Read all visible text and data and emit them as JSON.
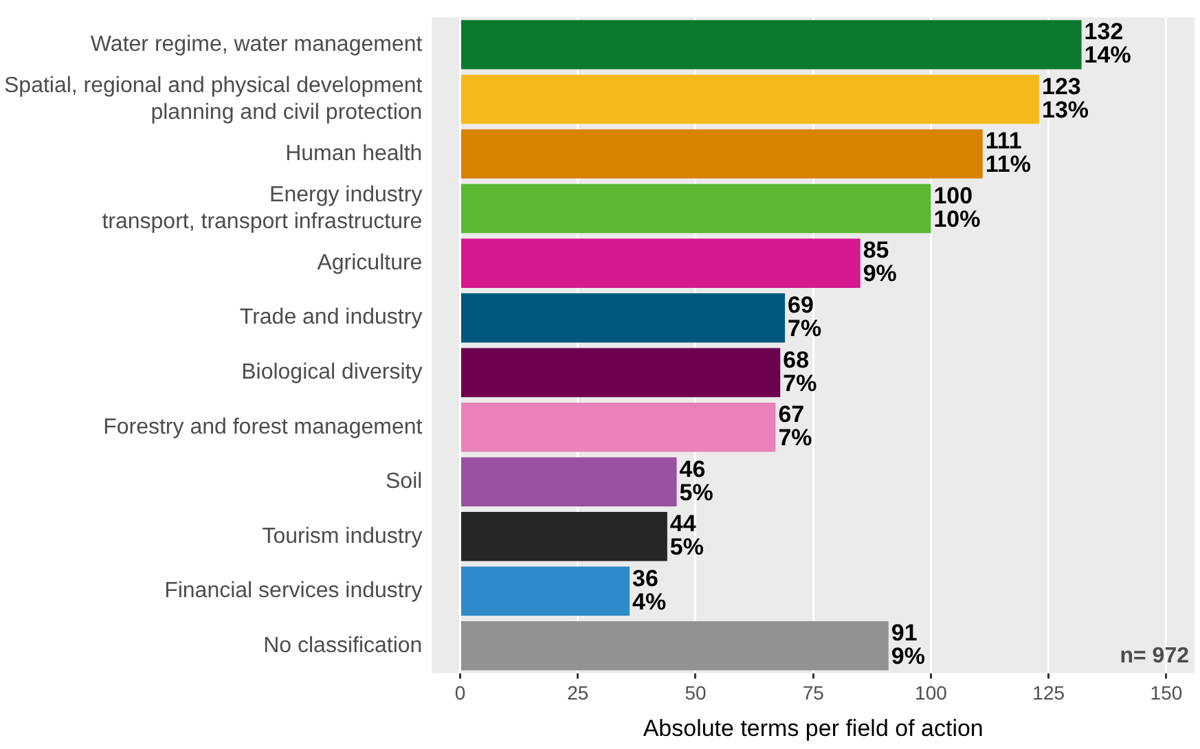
{
  "chart_data": {
    "type": "bar",
    "orientation": "horizontal",
    "xlabel": "Absolute terms per field of action",
    "categories": [
      "Water regime, water management",
      "Spatial, regional and physical development\nplanning and civil protection",
      "Human health",
      "Energy industry\ntransport, transport infrastructure",
      "Agriculture",
      "Trade and industry",
      "Biological diversity",
      "Forestry and forest management",
      "Soil",
      "Tourism industry",
      "Financial services industry",
      "No classification"
    ],
    "values": [
      132,
      123,
      111,
      100,
      85,
      69,
      68,
      67,
      46,
      44,
      36,
      91
    ],
    "colors": [
      "#0b7a2e",
      "#f5b91c",
      "#d98200",
      "#5cb832",
      "#d6198f",
      "#00587f",
      "#6e0050",
      "#e882b8",
      "#9a52a0",
      "#262626",
      "#2e8ac8",
      "#929292"
    ],
    "value_labels": [
      "132\n14%",
      "123\n13%",
      "111\n11%",
      "100\n10%",
      "85\n9%",
      "69\n7%",
      "68\n7%",
      "67\n7%",
      "46\n5%",
      "44\n5%",
      "36\n4%",
      "91\n9%"
    ],
    "xlim": [
      -6,
      156
    ],
    "xticks": [
      0,
      25,
      50,
      75,
      100,
      125,
      150
    ],
    "grid": "x",
    "legend": false,
    "annotations": [
      "n= 972"
    ]
  }
}
